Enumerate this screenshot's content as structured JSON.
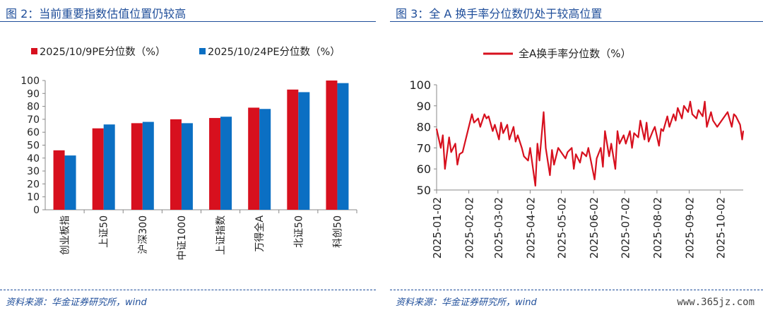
{
  "left": {
    "title": "图 2：当前重要指数估值位置仍较高",
    "source": "资料来源：华金证券研究所，wind"
  },
  "right": {
    "title": "图 3：全 A 换手率分位数仍处于较高位置",
    "source": "资料来源：华金证券研究所，wind"
  },
  "watermark": "www.365jz.com",
  "colors": {
    "red": "#d7101e",
    "blue": "#0b6fc3",
    "title_blue": "#1f4e9a"
  },
  "chart_data": [
    {
      "type": "bar",
      "categories": [
        "创业板指",
        "上证50",
        "沪深300",
        "中证1000",
        "上证指数",
        "万得全A",
        "北证50",
        "科创50"
      ],
      "series": [
        {
          "name": "2025/10/9PE分位数（%）",
          "values": [
            46,
            63,
            67,
            70,
            71,
            79,
            93,
            100
          ]
        },
        {
          "name": "2025/10/24PE分位数（%）",
          "values": [
            42,
            66,
            68,
            67,
            72,
            78,
            91,
            98
          ]
        }
      ],
      "ylim": [
        0,
        100
      ],
      "yticks": [
        0,
        10,
        20,
        30,
        40,
        50,
        60,
        70,
        80,
        90,
        100
      ],
      "legend": "top"
    },
    {
      "type": "line",
      "series": [
        {
          "name": "全A换手率分位数（%）",
          "x": [
            "2025-01-02",
            "2025-01-06",
            "2025-01-08",
            "2025-01-10",
            "2025-01-14",
            "2025-01-16",
            "2025-01-20",
            "2025-01-22",
            "2025-01-24",
            "2025-01-27",
            "2025-02-05",
            "2025-02-07",
            "2025-02-11",
            "2025-02-13",
            "2025-02-17",
            "2025-02-19",
            "2025-02-21",
            "2025-02-25",
            "2025-02-27",
            "2025-03-03",
            "2025-03-05",
            "2025-03-07",
            "2025-03-11",
            "2025-03-13",
            "2025-03-17",
            "2025-03-19",
            "2025-03-21",
            "2025-03-25",
            "2025-03-27",
            "2025-03-31",
            "2025-04-02",
            "2025-04-07",
            "2025-04-09",
            "2025-04-11",
            "2025-04-15",
            "2025-04-17",
            "2025-04-21",
            "2025-04-23",
            "2025-04-25",
            "2025-04-29",
            "2025-05-06",
            "2025-05-08",
            "2025-05-12",
            "2025-05-14",
            "2025-05-16",
            "2025-05-20",
            "2025-05-22",
            "2025-05-26",
            "2025-05-28",
            "2025-06-03",
            "2025-06-05",
            "2025-06-09",
            "2025-06-11",
            "2025-06-13",
            "2025-06-17",
            "2025-06-19",
            "2025-06-23",
            "2025-06-25",
            "2025-06-27",
            "2025-07-01",
            "2025-07-03",
            "2025-07-07",
            "2025-07-09",
            "2025-07-11",
            "2025-07-15",
            "2025-07-17",
            "2025-07-21",
            "2025-07-23",
            "2025-07-25",
            "2025-07-29",
            "2025-07-31",
            "2025-08-04",
            "2025-08-06",
            "2025-08-08",
            "2025-08-12",
            "2025-08-14",
            "2025-08-18",
            "2025-08-20",
            "2025-08-22",
            "2025-08-26",
            "2025-08-28",
            "2025-09-01",
            "2025-09-03",
            "2025-09-05",
            "2025-09-09",
            "2025-09-11",
            "2025-09-15",
            "2025-09-17",
            "2025-09-19",
            "2025-09-23",
            "2025-09-25",
            "2025-09-29",
            "2025-10-09",
            "2025-10-13",
            "2025-10-15",
            "2025-10-17",
            "2025-10-21",
            "2025-10-23",
            "2025-10-24"
          ],
          "values": [
            79,
            70,
            76,
            60,
            75,
            68,
            72,
            62,
            67,
            68,
            86,
            82,
            84,
            80,
            86,
            84,
            85,
            78,
            81,
            74,
            82,
            77,
            81,
            74,
            80,
            73,
            76,
            70,
            66,
            64,
            70,
            52,
            72,
            64,
            87,
            70,
            57,
            69,
            62,
            70,
            65,
            68,
            70,
            60,
            67,
            63,
            68,
            66,
            70,
            55,
            65,
            70,
            61,
            78,
            66,
            72,
            60,
            78,
            72,
            76,
            72,
            78,
            70,
            77,
            75,
            83,
            74,
            82,
            73,
            78,
            80,
            71,
            79,
            78,
            85,
            80,
            86,
            83,
            89,
            84,
            90,
            87,
            92,
            86,
            84,
            88,
            85,
            92,
            80,
            87,
            83,
            80,
            87,
            80,
            86,
            85,
            81,
            74,
            78
          ]
        }
      ],
      "ylim": [
        50,
        100
      ],
      "yticks": [
        50,
        60,
        70,
        80,
        90,
        100
      ],
      "xticks": [
        "2025-01-02",
        "2025-02-02",
        "2025-03-02",
        "2025-04-02",
        "2025-05-02",
        "2025-06-02",
        "2025-07-02",
        "2025-08-02",
        "2025-09-02",
        "2025-10-02"
      ],
      "legend": "top"
    }
  ]
}
